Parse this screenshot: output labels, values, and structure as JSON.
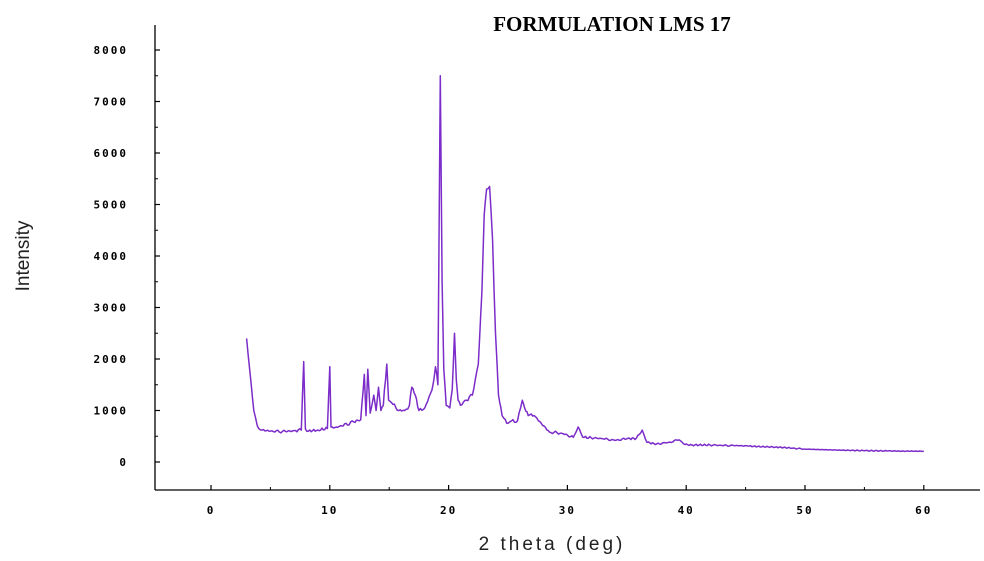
{
  "chart_data": {
    "type": "line",
    "title": "FORMULATION LMS 17",
    "xlabel": "2 theta (deg)",
    "ylabel": "Intensity",
    "xlim": [
      -5,
      65
    ],
    "ylim": [
      -500,
      8500
    ],
    "x_ticks": [
      0,
      10,
      20,
      30,
      40,
      50,
      60
    ],
    "x_tick_labels": [
      "0",
      "10",
      "20",
      "30",
      "40",
      "50",
      "60"
    ],
    "y_ticks": [
      0,
      1000,
      2000,
      3000,
      4000,
      5000,
      6000,
      7000,
      8000
    ],
    "y_tick_labels": [
      "0",
      "1000",
      "2000",
      "3000",
      "4000",
      "5000",
      "6000",
      "7000",
      "8000"
    ],
    "grid": false,
    "series": [
      {
        "color": "#7b2cc9",
        "x": [
          3.0,
          3.3,
          3.6,
          3.9,
          4.3,
          5.0,
          6.0,
          7.0,
          7.6,
          7.8,
          7.95,
          8.2,
          9.0,
          9.8,
          10.0,
          10.1,
          10.3,
          11.0,
          12.0,
          12.6,
          12.9,
          13.05,
          13.2,
          13.4,
          13.7,
          13.9,
          14.1,
          14.3,
          14.5,
          14.8,
          14.95,
          15.2,
          15.8,
          16.3,
          16.7,
          16.9,
          17.2,
          17.5,
          18.0,
          18.6,
          18.9,
          19.1,
          19.3,
          19.45,
          19.6,
          19.8,
          20.1,
          20.3,
          20.5,
          20.65,
          20.8,
          21.0,
          21.5,
          22.0,
          22.5,
          22.8,
          23.0,
          23.2,
          23.45,
          23.7,
          23.95,
          24.2,
          24.5,
          24.9,
          25.3,
          25.8,
          26.2,
          26.4,
          26.7,
          27.2,
          27.8,
          28.5,
          29.5,
          30.5,
          30.9,
          31.3,
          32.0,
          33.0,
          34.0,
          35.0,
          35.8,
          36.3,
          36.7,
          37.5,
          38.5,
          39.4,
          39.9,
          40.5,
          42.0,
          43.0,
          44.0,
          45.2,
          46.0,
          47.5,
          49.0,
          50.0,
          51.5,
          53.0,
          55.0,
          57.0,
          58.5,
          60.0
        ],
        "y": [
          2400,
          1700,
          1000,
          700,
          620,
          600,
          590,
          610,
          620,
          1950,
          640,
          600,
          620,
          650,
          1850,
          680,
          660,
          700,
          780,
          820,
          1700,
          900,
          1800,
          950,
          1300,
          1000,
          1450,
          1000,
          1100,
          1900,
          1200,
          1150,
          1000,
          1000,
          1100,
          1450,
          1300,
          1000,
          1050,
          1400,
          1850,
          1500,
          7500,
          3500,
          1800,
          1100,
          1050,
          1400,
          2500,
          1600,
          1200,
          1100,
          1200,
          1300,
          1900,
          3300,
          4800,
          5300,
          5350,
          4300,
          2500,
          1300,
          900,
          750,
          800,
          800,
          1200,
          1050,
          900,
          900,
          750,
          580,
          560,
          480,
          680,
          480,
          470,
          450,
          420,
          450,
          460,
          620,
          380,
          350,
          380,
          430,
          340,
          330,
          330,
          320,
          320,
          310,
          300,
          290,
          270,
          250,
          240,
          230,
          220,
          215,
          210,
          210
        ]
      }
    ]
  }
}
